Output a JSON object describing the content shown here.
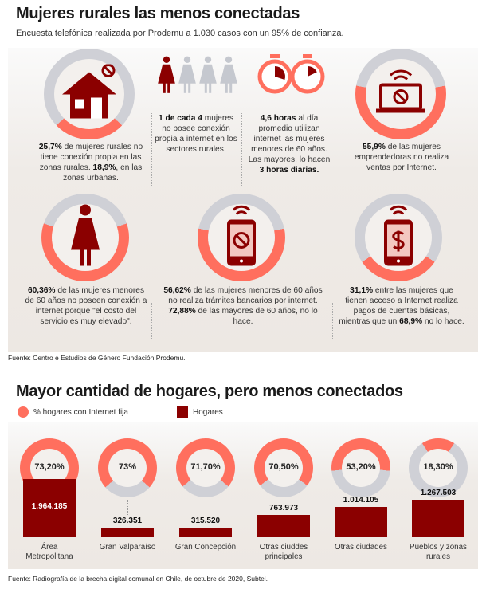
{
  "section1": {
    "title": "Mujeres rurales las menos conectadas",
    "subtitle": "Encuesta telefónica realizada por Prodemu a 1.030 casos con un 95% de confianza.",
    "stats": [
      {
        "icon": "house-no-signal-icon",
        "pct": 25.7,
        "bold1": "25,7%",
        "text1": " de mujeres rurales no tiene conexión propia en las zonas rurales. ",
        "bold2": "18,9%",
        "text2": ", en las zonas urbanas."
      },
      {
        "icon": "women-1-of-4-icon",
        "bold1": "1 de cada 4",
        "text1": " mujeres no posee conexión propia a internet en los sectores rurales.",
        "bold2": "",
        "text2": ""
      },
      {
        "icon": "stopwatch-icon",
        "bold1": "4,6 horas",
        "text1": " al día promedio utilizan internet las mujeres menores de 60 años. Las mayores, lo hacen ",
        "bold2": "3 horas diarias.",
        "text2": ""
      },
      {
        "icon": "laptop-no-icon",
        "pct": 55.9,
        "bold1": "55,9%",
        "text1": " de las mujeres emprendedoras no realiza ventas por Internet.",
        "bold2": "",
        "text2": ""
      },
      {
        "icon": "woman-icon",
        "pct": 60.36,
        "bold1": "60,36%",
        "text1": " de las mujeres menores de 60 años no poseen conexión a internet porque \"el costo del servicio es muy elevado\".",
        "bold2": "",
        "text2": ""
      },
      {
        "icon": "phone-no-icon",
        "pct": 56.62,
        "bold1": "56,62%",
        "text1": " de las mujeres menores de 60 años no realiza trámites bancarios por internet. ",
        "bold2": "72,88%",
        "text2": " de las mayores de 60 años, no lo hace."
      },
      {
        "icon": "phone-dollar-icon",
        "pct": 31.1,
        "bold1": "31,1%",
        "text1": " entre las mujeres que tienen acceso a Internet realiza pagos de cuentas básicas, mientras que un ",
        "bold2": "68,9%",
        "text2": " no lo hace."
      }
    ],
    "source": "Fuente: Centro e Estudios de Género Fundación Prodemu."
  },
  "colors": {
    "coral": "#ff6f5e",
    "grey": "#cfd0d6",
    "darkred": "#8b0000"
  },
  "chart_data": {
    "type": "bar",
    "title": "Mayor cantidad de hogares, pero menos conectados",
    "legend": [
      "% hogares con Internet fija",
      "Hogares"
    ],
    "categories": [
      "Área Metropolitana",
      "Gran Valparaíso",
      "Gran Concepción",
      "Otras ciuddes principales",
      "Otras ciudades",
      "Pueblos y zonas rurales"
    ],
    "series": [
      {
        "name": "% hogares con Internet fija",
        "type": "donut",
        "values": [
          73.2,
          73,
          71.7,
          70.5,
          53.2,
          18.3
        ],
        "labels": [
          "73,20%",
          "73%",
          "71,70%",
          "70,50%",
          "53,20%",
          "18,30%"
        ]
      },
      {
        "name": "Hogares",
        "type": "bar",
        "values": [
          1964185,
          326351,
          315520,
          763973,
          1014105,
          1267503
        ],
        "labels": [
          "1.964.185",
          "326.351",
          "315.520",
          "763.973",
          "1.014.105",
          "1.267.503"
        ]
      }
    ],
    "source": "Fuente: Radiografía de la brecha digital comunal en Chile, de octubre de 2020, Subtel."
  }
}
